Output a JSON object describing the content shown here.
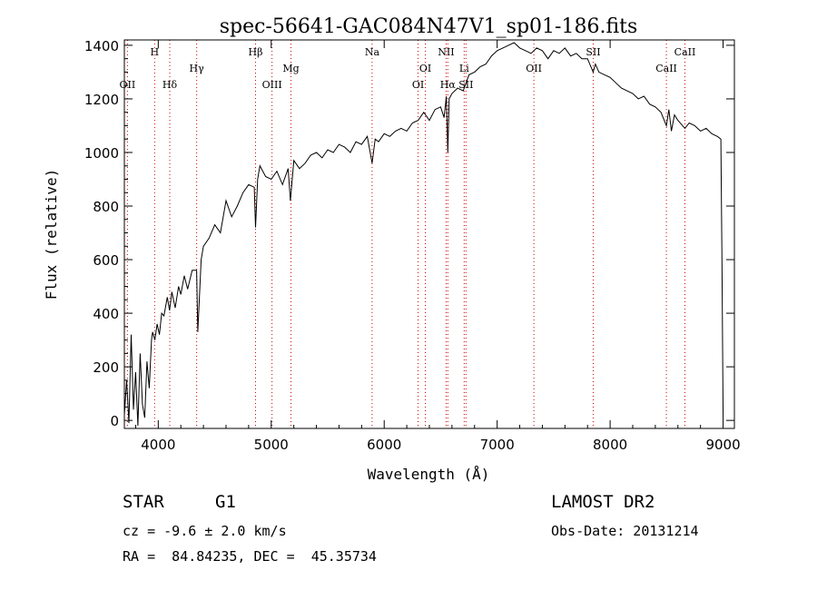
{
  "chart_data": {
    "type": "line",
    "title": "spec-56641-GAC084N47V1_sp01-186.fits",
    "xlabel": "Wavelength (Å)",
    "ylabel": "Flux (relative)",
    "xlim": [
      3700,
      9100
    ],
    "ylim": [
      -30,
      1420
    ],
    "xticks": [
      4000,
      5000,
      6000,
      7000,
      8000,
      9000
    ],
    "yticks": [
      0,
      200,
      400,
      600,
      800,
      1000,
      1200,
      1400
    ],
    "grid": false,
    "series": [
      {
        "color": "#000000",
        "x": [
          3700,
          3720,
          3740,
          3760,
          3780,
          3800,
          3820,
          3840,
          3860,
          3880,
          3900,
          3920,
          3940,
          3950,
          3970,
          3990,
          4010,
          4030,
          4050,
          4080,
          4100,
          4120,
          4150,
          4180,
          4200,
          4230,
          4260,
          4300,
          4340,
          4350,
          4380,
          4400,
          4450,
          4500,
          4550,
          4600,
          4650,
          4700,
          4750,
          4800,
          4850,
          4861,
          4880,
          4900,
          4950,
          5000,
          5050,
          5100,
          5150,
          5170,
          5200,
          5250,
          5300,
          5350,
          5400,
          5450,
          5500,
          5550,
          5600,
          5650,
          5700,
          5750,
          5800,
          5850,
          5893,
          5920,
          5950,
          6000,
          6050,
          6100,
          6150,
          6200,
          6250,
          6300,
          6350,
          6400,
          6450,
          6500,
          6530,
          6550,
          6563,
          6575,
          6600,
          6650,
          6700,
          6750,
          6800,
          6850,
          6900,
          6950,
          7000,
          7050,
          7100,
          7150,
          7200,
          7250,
          7300,
          7350,
          7400,
          7450,
          7500,
          7550,
          7600,
          7650,
          7700,
          7750,
          7800,
          7850,
          7870,
          7900,
          7950,
          8000,
          8050,
          8100,
          8150,
          8200,
          8250,
          8300,
          8350,
          8400,
          8450,
          8498,
          8520,
          8542,
          8570,
          8600,
          8662,
          8700,
          8750,
          8800,
          8850,
          8900,
          8950,
          8980,
          8990,
          9000
        ],
        "y": [
          20,
          150,
          -10,
          320,
          40,
          180,
          -20,
          250,
          60,
          10,
          220,
          120,
          300,
          330,
          300,
          360,
          320,
          400,
          390,
          460,
          410,
          480,
          420,
          500,
          470,
          540,
          490,
          560,
          560,
          330,
          600,
          650,
          680,
          730,
          700,
          820,
          760,
          800,
          850,
          880,
          870,
          720,
          900,
          950,
          910,
          900,
          930,
          880,
          940,
          820,
          970,
          940,
          960,
          990,
          1000,
          980,
          1010,
          1000,
          1030,
          1020,
          1000,
          1040,
          1030,
          1060,
          960,
          1050,
          1040,
          1070,
          1060,
          1080,
          1090,
          1080,
          1110,
          1120,
          1150,
          1120,
          1160,
          1170,
          1130,
          1210,
          1000,
          1200,
          1220,
          1240,
          1230,
          1290,
          1300,
          1320,
          1330,
          1360,
          1380,
          1390,
          1400,
          1410,
          1390,
          1380,
          1370,
          1390,
          1380,
          1350,
          1380,
          1370,
          1390,
          1360,
          1370,
          1350,
          1350,
          1300,
          1330,
          1300,
          1290,
          1280,
          1260,
          1240,
          1230,
          1220,
          1200,
          1210,
          1180,
          1170,
          1150,
          1100,
          1160,
          1080,
          1140,
          1120,
          1090,
          1110,
          1100,
          1080,
          1090,
          1070,
          1060,
          1050,
          600,
          0
        ]
      }
    ],
    "line_markers": [
      {
        "label": "OII",
        "x": 3727,
        "row": 2
      },
      {
        "label": "H",
        "x": 3968,
        "row": 0
      },
      {
        "label": "Hδ",
        "x": 4102,
        "row": 2
      },
      {
        "label": "Hγ",
        "x": 4340,
        "row": 1
      },
      {
        "label": "Hβ",
        "x": 4861,
        "row": 0
      },
      {
        "label": "OIII",
        "x": 5007,
        "row": 2
      },
      {
        "label": "Mg",
        "x": 5175,
        "row": 1
      },
      {
        "label": "Na",
        "x": 5893,
        "row": 0
      },
      {
        "label": "OI",
        "x": 6300,
        "row": 2
      },
      {
        "label": "OI",
        "x": 6364,
        "row": 1
      },
      {
        "label": "NII",
        "x": 6548,
        "row": 0
      },
      {
        "label": "Hα",
        "x": 6563,
        "row": 2
      },
      {
        "label": "Li",
        "x": 6708,
        "row": 1
      },
      {
        "label": "SII",
        "x": 6724,
        "row": 2
      },
      {
        "label": "OII",
        "x": 7325,
        "row": 1
      },
      {
        "label": "SII",
        "x": 7850,
        "row": 0
      },
      {
        "label": "CaII",
        "x": 8498,
        "row": 1
      },
      {
        "label": "CaII",
        "x": 8662,
        "row": 0
      }
    ]
  },
  "info": {
    "object_class": "STAR",
    "subclass": "G1",
    "cz": "cz = -9.6 ± 2.0 km/s",
    "coords": "RA =  84.84235, DEC =  45.35734",
    "survey": "LAMOST DR2",
    "obs_date": "Obs-Date: 20131214"
  },
  "colors": {
    "spectrum": "#000000",
    "marker": "#cc0000"
  }
}
